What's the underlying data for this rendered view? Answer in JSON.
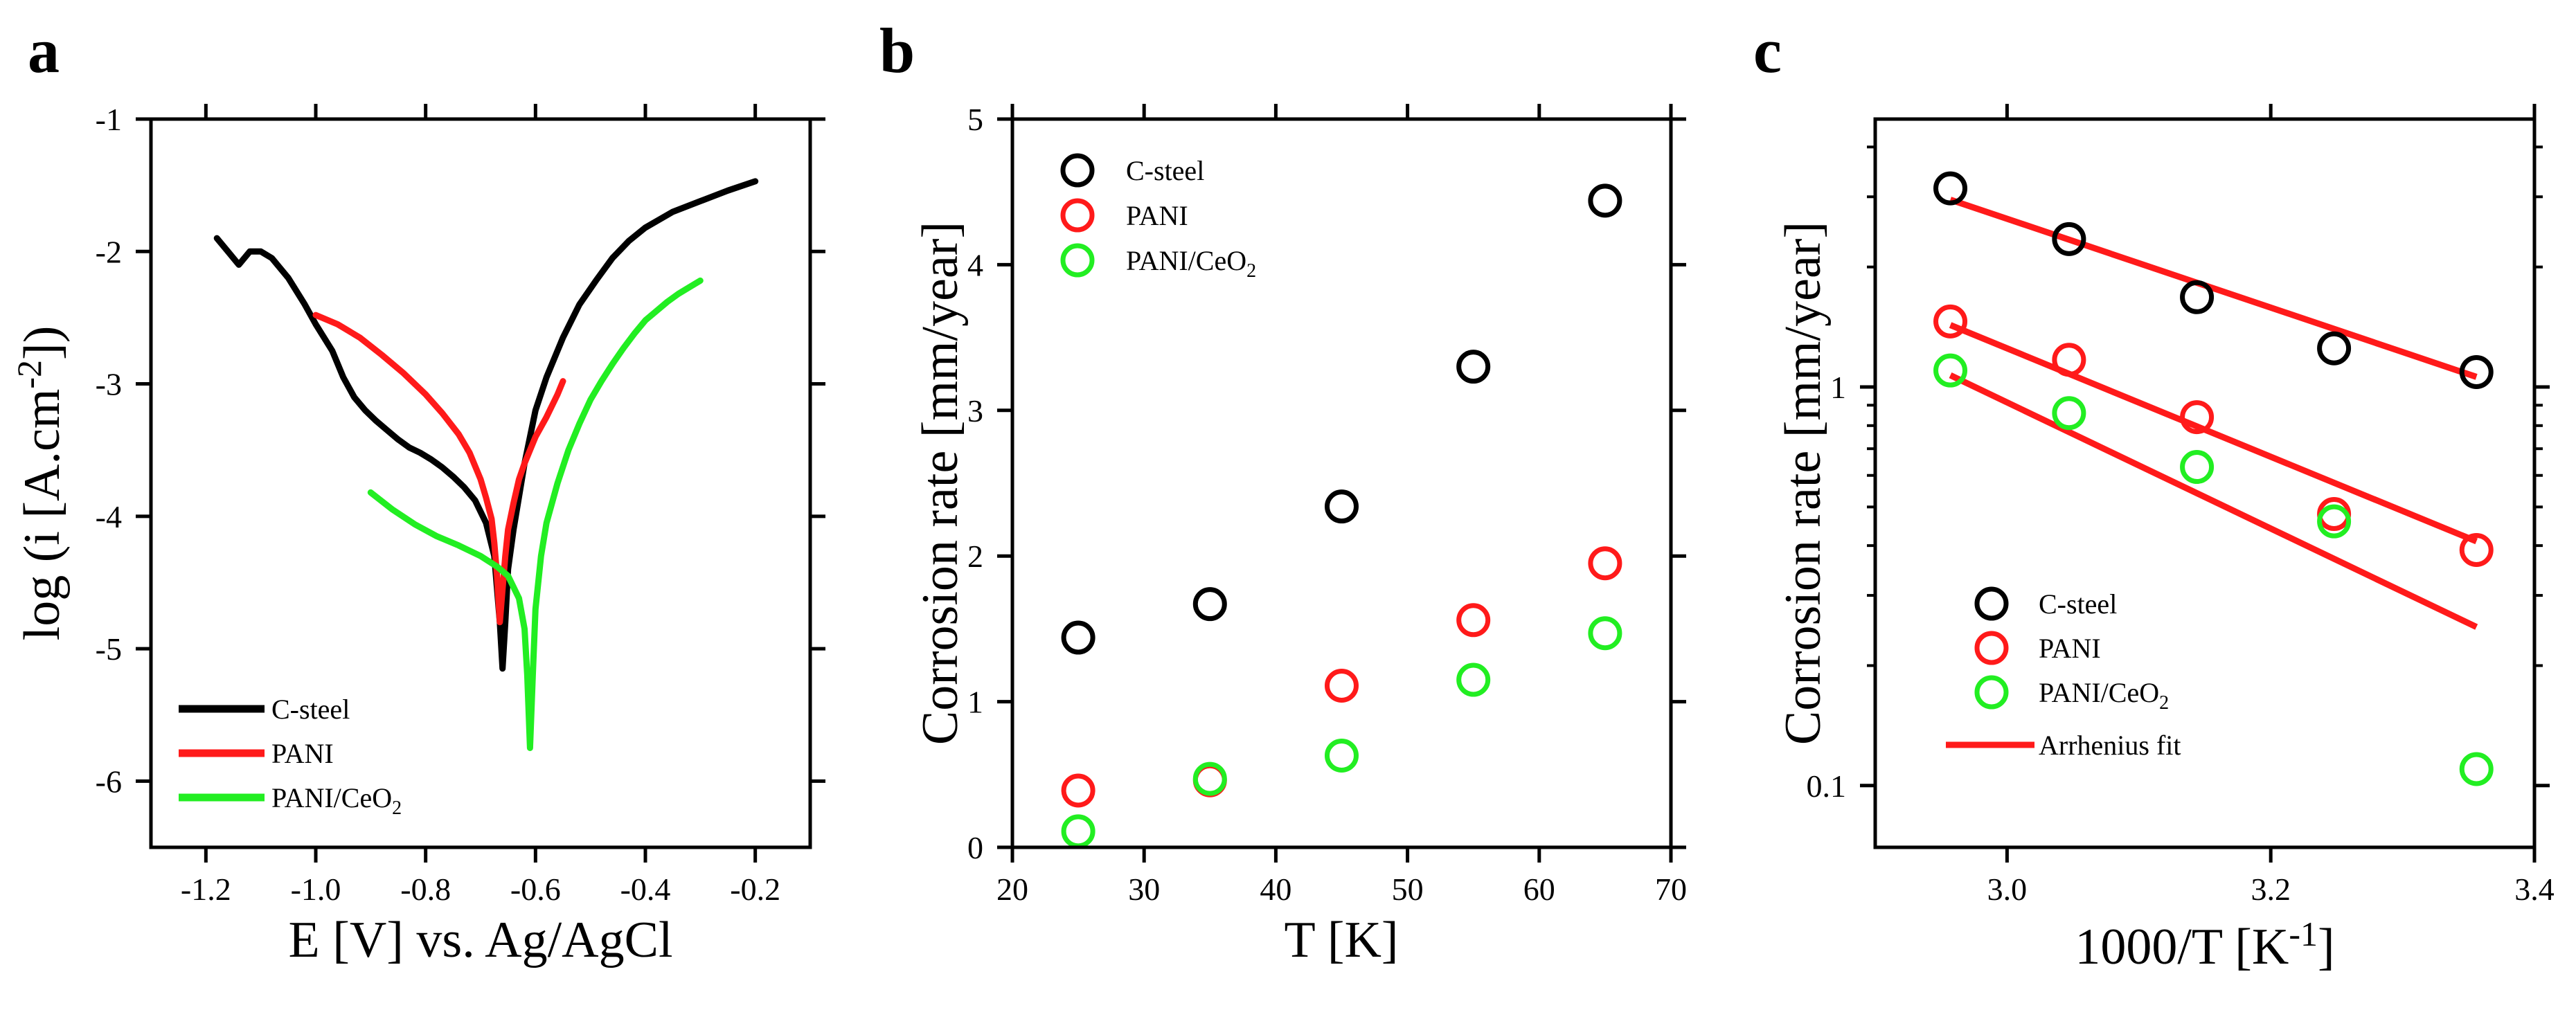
{
  "colors": {
    "black": "#000000",
    "red": "#ff1a1a",
    "green": "#22ee22",
    "fit": "#ff1a1a"
  },
  "chart_data": [
    {
      "panel_label": "a",
      "type": "line",
      "title": "",
      "xlabel": "E [V] vs. Ag/AgCl",
      "ylabel_parts": [
        "log (i [A.cm",
        "-2",
        "])"
      ],
      "xlim": [
        -1.3,
        -0.1
      ],
      "ylim": [
        -6.5,
        -1.0
      ],
      "xticks": [
        -1.2,
        -1.0,
        -0.8,
        -0.6,
        -0.4,
        -0.2
      ],
      "xtick_labels": [
        "-1.2",
        "-1.0",
        "-0.8",
        "-0.6",
        "-0.4",
        "-0.2"
      ],
      "yticks": [
        -1,
        -2,
        -3,
        -4,
        -5,
        -6
      ],
      "ytick_labels": [
        "-1",
        "-2",
        "-3",
        "-4",
        "-5",
        "-6"
      ],
      "legend_position": "bottom-left",
      "series": [
        {
          "name": "C-steel",
          "color": "#000000",
          "x": [
            -1.18,
            -1.16,
            -1.14,
            -1.13,
            -1.12,
            -1.1,
            -1.08,
            -1.05,
            -1.02,
            -1.0,
            -0.97,
            -0.95,
            -0.93,
            -0.91,
            -0.89,
            -0.87,
            -0.85,
            -0.83,
            -0.81,
            -0.79,
            -0.77,
            -0.75,
            -0.73,
            -0.71,
            -0.69,
            -0.675,
            -0.665,
            -0.66,
            -0.655,
            -0.65,
            -0.64,
            -0.62,
            -0.6,
            -0.58,
            -0.55,
            -0.52,
            -0.49,
            -0.46,
            -0.43,
            -0.4,
            -0.35,
            -0.3,
            -0.25,
            -0.2
          ],
          "y": [
            -1.9,
            -2.0,
            -2.1,
            -2.05,
            -2.0,
            -2.0,
            -2.05,
            -2.2,
            -2.4,
            -2.55,
            -2.75,
            -2.95,
            -3.1,
            -3.2,
            -3.28,
            -3.35,
            -3.42,
            -3.48,
            -3.52,
            -3.57,
            -3.63,
            -3.7,
            -3.78,
            -3.88,
            -4.05,
            -4.3,
            -4.8,
            -5.15,
            -4.8,
            -4.4,
            -4.1,
            -3.6,
            -3.2,
            -2.95,
            -2.65,
            -2.4,
            -2.22,
            -2.05,
            -1.92,
            -1.82,
            -1.7,
            -1.62,
            -1.54,
            -1.47
          ]
        },
        {
          "name": "PANI",
          "color": "#ff1a1a",
          "x": [
            -1.0,
            -0.96,
            -0.92,
            -0.88,
            -0.84,
            -0.8,
            -0.77,
            -0.74,
            -0.72,
            -0.7,
            -0.69,
            -0.68,
            -0.675,
            -0.67,
            -0.665,
            -0.66,
            -0.655,
            -0.65,
            -0.64,
            -0.63,
            -0.62,
            -0.6,
            -0.58,
            -0.56,
            -0.55
          ],
          "y": [
            -2.48,
            -2.55,
            -2.65,
            -2.78,
            -2.92,
            -3.08,
            -3.22,
            -3.38,
            -3.52,
            -3.72,
            -3.86,
            -4.02,
            -4.2,
            -4.45,
            -4.8,
            -4.55,
            -4.3,
            -4.1,
            -3.9,
            -3.72,
            -3.6,
            -3.4,
            -3.25,
            -3.08,
            -2.98
          ]
        },
        {
          "name": "PANI/CeO",
          "subscript": "2",
          "color": "#22ee22",
          "x": [
            -0.9,
            -0.86,
            -0.82,
            -0.78,
            -0.74,
            -0.7,
            -0.67,
            -0.65,
            -0.63,
            -0.62,
            -0.615,
            -0.61,
            -0.605,
            -0.6,
            -0.59,
            -0.58,
            -0.56,
            -0.54,
            -0.52,
            -0.5,
            -0.48,
            -0.46,
            -0.44,
            -0.42,
            -0.4,
            -0.38,
            -0.36,
            -0.34,
            -0.32,
            -0.3
          ],
          "y": [
            -3.82,
            -3.95,
            -4.06,
            -4.15,
            -4.22,
            -4.3,
            -4.38,
            -4.45,
            -4.62,
            -4.85,
            -5.2,
            -5.75,
            -5.2,
            -4.7,
            -4.3,
            -4.05,
            -3.75,
            -3.5,
            -3.3,
            -3.12,
            -2.98,
            -2.85,
            -2.73,
            -2.62,
            -2.52,
            -2.45,
            -2.38,
            -2.32,
            -2.27,
            -2.22
          ]
        }
      ]
    },
    {
      "panel_label": "b",
      "type": "scatter",
      "title": "",
      "xlabel": "T [K]",
      "ylabel": "Corrosion rate [mm/year]",
      "xlim": [
        20,
        70
      ],
      "ylim": [
        0,
        5
      ],
      "xticks": [
        20,
        30,
        40,
        50,
        60,
        70
      ],
      "xtick_labels": [
        "20",
        "30",
        "40",
        "50",
        "60",
        "70"
      ],
      "yticks": [
        0,
        1,
        2,
        3,
        4,
        5
      ],
      "ytick_labels": [
        "0",
        "1",
        "2",
        "3",
        "4",
        "5"
      ],
      "legend_position": "top-left",
      "x": [
        25,
        35,
        45,
        55,
        65
      ],
      "series": [
        {
          "name": "C-steel",
          "color": "#000000",
          "values": [
            1.44,
            1.67,
            2.34,
            3.3,
            4.44
          ]
        },
        {
          "name": "PANI",
          "color": "#ff1a1a",
          "values": [
            0.39,
            0.46,
            1.11,
            1.56,
            1.95
          ]
        },
        {
          "name": "PANI/CeO",
          "subscript": "2",
          "color": "#22ee22",
          "values": [
            0.11,
            0.47,
            0.63,
            1.15,
            1.47
          ]
        }
      ]
    },
    {
      "panel_label": "c",
      "type": "scatter",
      "title": "",
      "xlabel_parts": [
        "1000/T [K",
        "-1",
        "]"
      ],
      "ylabel": "Corrosion rate [mm/year]",
      "yscale": "log",
      "xlim": [
        2.9,
        3.4
      ],
      "ylim": [
        0.07,
        4.7
      ],
      "xticks": [
        3.0,
        3.2,
        3.4
      ],
      "xtick_labels": [
        "3.0",
        "3.2",
        "3.4"
      ],
      "yticks": [
        0.1,
        1
      ],
      "ytick_labels": [
        "0.1",
        "1"
      ],
      "legend_position": "bottom-left",
      "x": [
        2.957,
        3.047,
        3.144,
        3.248,
        3.356
      ],
      "series": [
        {
          "name": "C-steel",
          "color": "#000000",
          "values": [
            3.15,
            2.35,
            1.68,
            1.25,
            1.09
          ]
        },
        {
          "name": "PANI",
          "color": "#ff1a1a",
          "values": [
            1.46,
            1.17,
            0.84,
            0.48,
            0.39
          ]
        },
        {
          "name": "PANI/CeO",
          "subscript": "2",
          "color": "#22ee22",
          "values": [
            1.1,
            0.86,
            0.63,
            0.46,
            0.11
          ]
        }
      ],
      "fit": {
        "name": "Arrhenius fit",
        "color": "#ff1a1a",
        "lines": [
          {
            "x": [
              2.957,
              3.356
            ],
            "y": [
              2.95,
              1.06
            ]
          },
          {
            "x": [
              2.957,
              3.356
            ],
            "y": [
              1.43,
              0.41
            ]
          },
          {
            "x": [
              2.957,
              3.356
            ],
            "y": [
              1.07,
              0.25
            ]
          }
        ]
      }
    }
  ]
}
